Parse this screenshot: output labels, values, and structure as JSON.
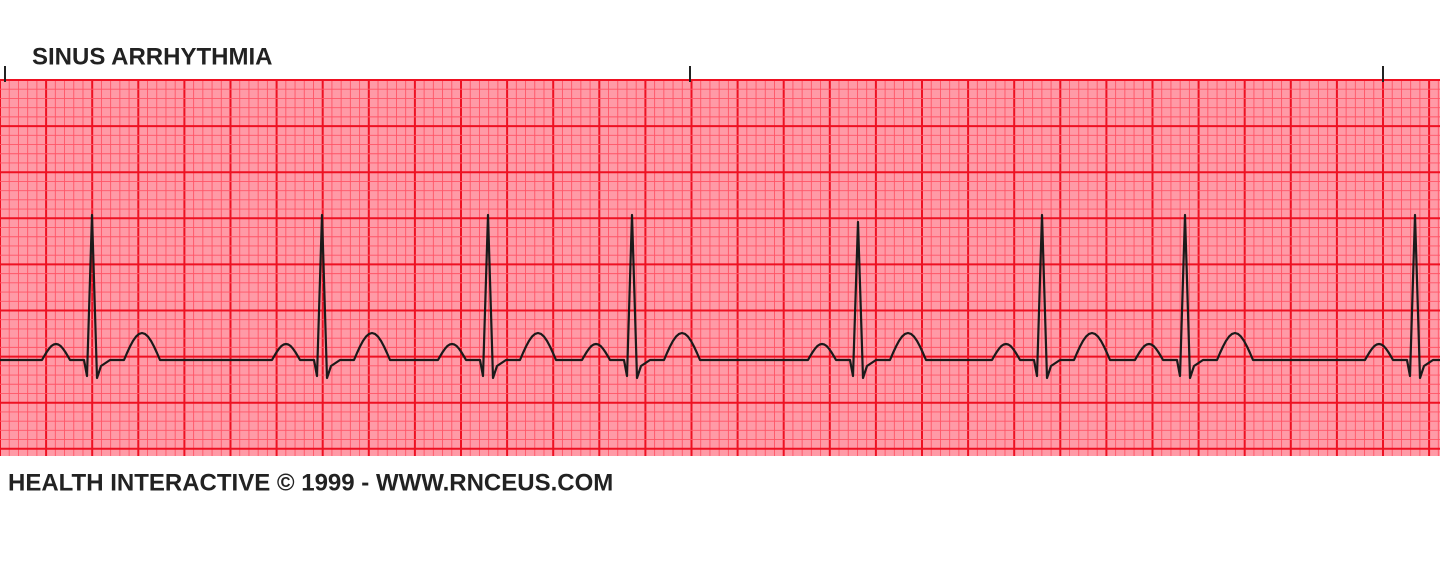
{
  "header": {
    "title": "SINUS ARRHYTHMIA"
  },
  "footer": {
    "credit": "HEALTH INTERACTIVE © 1999 - WWW.RNCEUS.COM"
  }
}
